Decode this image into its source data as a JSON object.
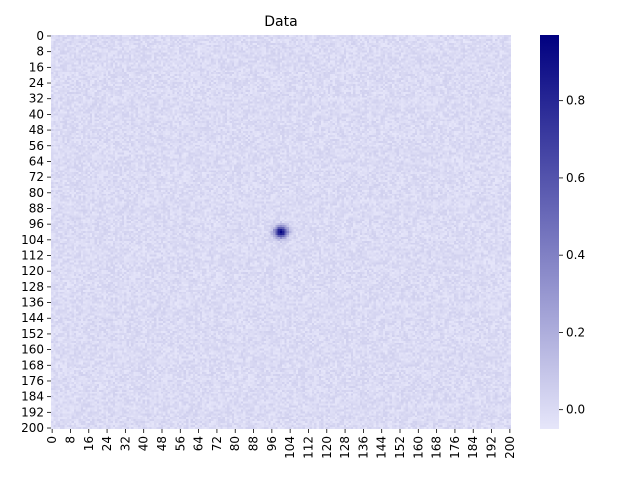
{
  "chart_data": {
    "type": "heatmap",
    "title": "Data",
    "xlabel": "",
    "ylabel": "",
    "grid": false,
    "legend": "colorbar-right",
    "rows": 201,
    "cols": 201,
    "x_ticks": [
      0,
      8,
      16,
      24,
      32,
      40,
      48,
      56,
      64,
      72,
      80,
      88,
      96,
      104,
      112,
      120,
      128,
      136,
      144,
      152,
      160,
      168,
      176,
      184,
      192,
      200
    ],
    "y_ticks": [
      0,
      8,
      16,
      24,
      32,
      40,
      48,
      56,
      64,
      72,
      80,
      88,
      96,
      104,
      112,
      120,
      128,
      136,
      144,
      152,
      160,
      168,
      176,
      184,
      192,
      200
    ],
    "peak": {
      "x": 100,
      "y": 100,
      "value": 0.97,
      "sigma": 2.0
    },
    "noise_range": [
      -0.05,
      0.05
    ],
    "colorbar": {
      "range": [
        -0.05,
        0.97
      ],
      "ticks": [
        "0.0",
        "0.2",
        "0.4",
        "0.6",
        "0.8"
      ],
      "tick_values": [
        0.0,
        0.2,
        0.4,
        0.6,
        0.8
      ],
      "colors": [
        "#e6e6fa",
        "#000080"
      ]
    }
  }
}
